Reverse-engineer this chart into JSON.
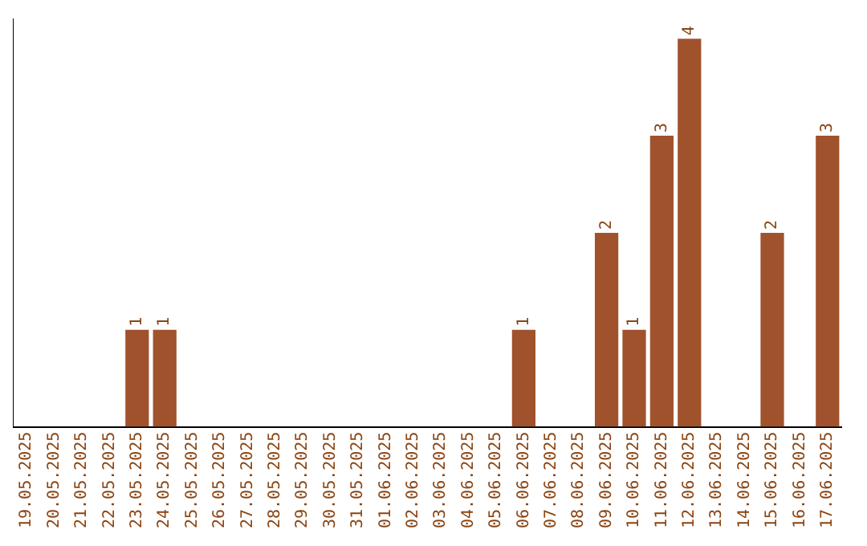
{
  "chart_data": {
    "type": "bar",
    "categories": [
      "19.05.2025",
      "20.05.2025",
      "21.05.2025",
      "22.05.2025",
      "23.05.2025",
      "24.05.2025",
      "25.05.2025",
      "26.05.2025",
      "27.05.2025",
      "28.05.2025",
      "29.05.2025",
      "30.05.2025",
      "31.05.2025",
      "01.06.2025",
      "02.06.2025",
      "03.06.2025",
      "04.06.2025",
      "05.06.2025",
      "06.06.2025",
      "07.06.2025",
      "08.06.2025",
      "09.06.2025",
      "10.06.2025",
      "11.06.2025",
      "12.06.2025",
      "13.06.2025",
      "14.06.2025",
      "15.06.2025",
      "16.06.2025",
      "17.06.2025"
    ],
    "values": [
      0,
      0,
      0,
      0,
      1,
      1,
      0,
      0,
      0,
      0,
      0,
      0,
      0,
      0,
      0,
      0,
      0,
      0,
      1,
      0,
      0,
      2,
      1,
      3,
      4,
      0,
      0,
      2,
      0,
      3
    ],
    "value_labels": [
      null,
      null,
      null,
      null,
      "1",
      "1",
      null,
      null,
      null,
      null,
      null,
      null,
      null,
      null,
      null,
      null,
      null,
      null,
      "1",
      null,
      null,
      "2",
      "1",
      "3",
      "4",
      null,
      null,
      "2",
      null,
      "3"
    ],
    "color": "#a0522d",
    "ylim": [
      0,
      4.2
    ],
    "grid": false,
    "legend": false,
    "tick_labels": "x"
  }
}
